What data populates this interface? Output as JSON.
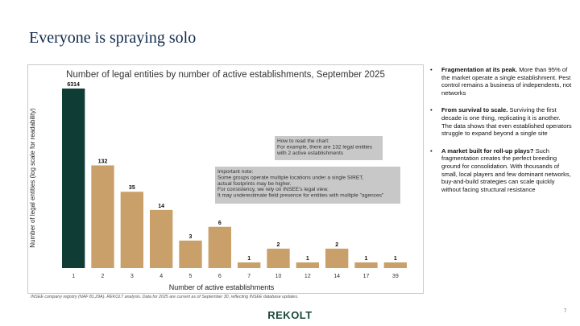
{
  "slide": {
    "title": "Everyone is spraying solo",
    "source": "INSEE company registry (NAF 81.29A). REKOLT analysis. Data for 2025 are current as of September 30, reflecting INSEE database updates.",
    "logo": "REKOLT",
    "page_number": "7"
  },
  "bullets": [
    {
      "heading": "Fragmentation at its peak.",
      "body": "More than 95% of the market operate a single establishment. Pest control remains a business of independents, not networks"
    },
    {
      "heading": "From survival to scale.",
      "body": "Surviving the first decade is one thing, replicating it is another. The data shows that even established operators struggle to expand beyond a single site"
    },
    {
      "heading": "A market built for roll-up plays?",
      "body": "Such fragmentation creates the perfect breeding ground for consolidation. With thousands of small, local players and few dominant networks, buy-and-build strategies can scale quickly without facing structural resistance"
    }
  ],
  "colors": {
    "highlight": "#0f3d35",
    "bar": "#c9a06a",
    "note_bg": "#c8c8c8",
    "title": "#0f2a4a"
  },
  "chart_data": {
    "type": "bar",
    "title": "Number of legal entities by number of active establishments, September 2025",
    "xlabel": "Number of active establishments",
    "ylabel": "Number of legal entities (log scale for readability)",
    "yscale": "log",
    "categories": [
      "1",
      "2",
      "3",
      "4",
      "5",
      "6",
      "7",
      "10",
      "12",
      "14",
      "17",
      "39"
    ],
    "values": [
      6314,
      132,
      35,
      14,
      3,
      6,
      1,
      2,
      1,
      2,
      1,
      1
    ],
    "highlight_index": 0,
    "notes": [
      {
        "name": "how-to-read",
        "lines": [
          "How to read the chart:",
          "For example, there are 132 legal entities",
          "with 2 active establishments"
        ]
      },
      {
        "name": "important",
        "lines": [
          "Important note:",
          "Some groups operate multiple locations under a single SIRET,",
          "actual footprints may be higher.",
          "For consistency, we rely on INSEE's legal view.",
          "It may underestimate field presence for entities with multiple \"agences\""
        ]
      }
    ]
  }
}
